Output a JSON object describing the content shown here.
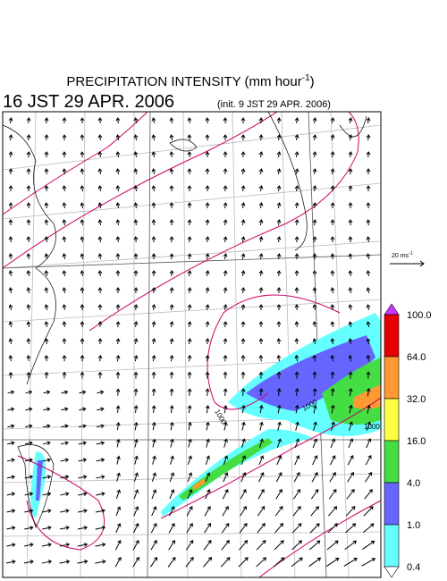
{
  "header": {
    "title": "PRECIPITATION INTENSITY (mm hour",
    "title_sup": "-1",
    "title_end": ")",
    "valid_time": "16 JST 29 APR. 2006",
    "init_time": "(init. 9 JST 29 APR. 2006)"
  },
  "vector_scale": {
    "label": "20 ms",
    "label_sup": "-1"
  },
  "map": {
    "contour_labels": [
      "1000",
      "1000",
      "1000"
    ]
  },
  "colorbar": {
    "top_color": "#cc33ff",
    "bottom_color": "#ffffff",
    "levels": [
      {
        "label": "100.0",
        "color": "#e60000"
      },
      {
        "label": "64.0",
        "color": "#ff9933"
      },
      {
        "label": "32.0",
        "color": "#ffff44"
      },
      {
        "label": "16.0",
        "color": "#44dd44"
      },
      {
        "label": "4.0",
        "color": "#6666ff"
      },
      {
        "label": "1.0",
        "color": "#66ffff"
      },
      {
        "label": "0.4",
        "color": null
      }
    ]
  }
}
